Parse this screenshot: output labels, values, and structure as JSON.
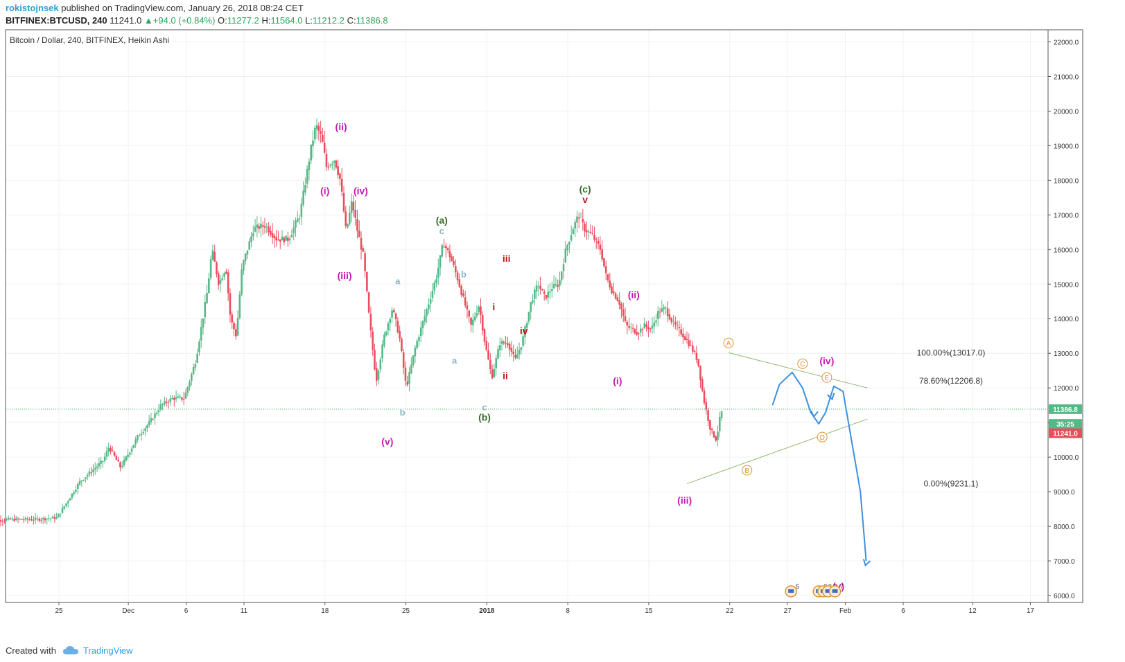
{
  "header": {
    "author": "rokistojnsek",
    "published": "published on TradingView.com, January 26, 2018 08:24 CET",
    "symbol": "BITFINEX:BTCUSD, 240",
    "last": "11241.0",
    "change": "+94.0 (+0.84%)",
    "o_label": "O:",
    "o_value": "11277.2",
    "h_label": "H:",
    "h_value": "11564.0",
    "l_label": "L:",
    "l_value": "11212.2",
    "c_label": "C:",
    "c_value": "11386.8"
  },
  "footer": {
    "created_with": "Created with",
    "brand": "TradingView"
  },
  "colors": {
    "up": "#53b987",
    "down": "#eb4d5c",
    "purple": "#c71ab0",
    "green_dark": "#3b6b2e",
    "red_dark": "#b71c1c",
    "lightblue": "#8fb4c4",
    "orange": "#e0922f",
    "fib_line": "#8db86b",
    "forecast": "#3d8fe0",
    "price_line": "#26a65b"
  },
  "chart_data": {
    "type": "candlestick",
    "title": "Bitcoin / Dollar, 240, BITFINEX, Heikin Ashi",
    "ylim": [
      5800,
      22350
    ],
    "y_ticks": [
      6000,
      7000,
      8000,
      9000,
      10000,
      11000,
      12000,
      13000,
      14000,
      15000,
      16000,
      17000,
      18000,
      19000,
      20000,
      21000,
      22000
    ],
    "y_tick_labels": [
      "6000.0",
      "7000.0",
      "8000.0",
      "9000.0",
      "10000.0",
      "11000.0",
      "12000.0",
      "13000.0",
      "14000.0",
      "15000.0",
      "16000.0",
      "17000.0",
      "18000.0",
      "19000.0",
      "20000.0",
      "21000.0",
      "22000.0"
    ],
    "x_days": [
      -11.2,
      52.4
    ],
    "x_ticks": [
      {
        "day": -5,
        "label": "25"
      },
      {
        "day": 1,
        "label": "Dec"
      },
      {
        "day": 6,
        "label": "6"
      },
      {
        "day": 11,
        "label": "11"
      },
      {
        "day": 18,
        "label": "18"
      },
      {
        "day": 25,
        "label": "25"
      },
      {
        "day": 32,
        "label": "2018"
      },
      {
        "day": 39,
        "label": "8"
      },
      {
        "day": 46,
        "label": "15"
      },
      {
        "day": 53,
        "label": "22"
      },
      {
        "day": 58,
        "label": "27"
      },
      {
        "day": 63,
        "label": "Feb"
      },
      {
        "day": 68,
        "label": "6"
      },
      {
        "day": 74,
        "label": "12"
      },
      {
        "day": 79,
        "label": "17"
      }
    ],
    "price_key": [
      [
        -11.2,
        8150
      ],
      [
        -9,
        8200
      ],
      [
        -7,
        8200
      ],
      [
        -5,
        8250
      ],
      [
        -3,
        9300
      ],
      [
        -1,
        9900
      ],
      [
        -0.5,
        10300
      ],
      [
        0.5,
        9700
      ],
      [
        2,
        10600
      ],
      [
        3,
        11000
      ],
      [
        4,
        11500
      ],
      [
        5,
        11700
      ],
      [
        6,
        11700
      ],
      [
        7,
        12800
      ],
      [
        8,
        14800
      ],
      [
        8.4,
        16000
      ],
      [
        9,
        15000
      ],
      [
        9.6,
        15500
      ],
      [
        10,
        14000
      ],
      [
        10.5,
        13500
      ],
      [
        11,
        15500
      ],
      [
        12,
        16600
      ],
      [
        13,
        16700
      ],
      [
        14,
        16300
      ],
      [
        15,
        16300
      ],
      [
        16,
        17000
      ],
      [
        16.5,
        18000
      ],
      [
        17,
        19000
      ],
      [
        17.4,
        19600
      ],
      [
        17.9,
        19200
      ],
      [
        18.3,
        18400
      ],
      [
        19,
        18600
      ],
      [
        19.5,
        18000
      ],
      [
        20,
        16500
      ],
      [
        20.5,
        17400
      ],
      [
        21,
        16500
      ],
      [
        21.5,
        15800
      ],
      [
        22,
        14000
      ],
      [
        22.6,
        12200
      ],
      [
        23.3,
        13500
      ],
      [
        24,
        14300
      ],
      [
        24.6,
        13500
      ],
      [
        25.2,
        12000
      ],
      [
        26,
        13200
      ],
      [
        27,
        14300
      ],
      [
        27.8,
        15200
      ],
      [
        28.4,
        16200
      ],
      [
        29,
        15800
      ],
      [
        29.6,
        15200
      ],
      [
        30.2,
        14500
      ],
      [
        30.8,
        13800
      ],
      [
        31.5,
        14400
      ],
      [
        32,
        13300
      ],
      [
        32.6,
        12300
      ],
      [
        33.3,
        13300
      ],
      [
        34,
        13300
      ],
      [
        34.6,
        12800
      ],
      [
        35.2,
        13300
      ],
      [
        36,
        14500
      ],
      [
        36.6,
        15000
      ],
      [
        37.2,
        14600
      ],
      [
        37.8,
        14900
      ],
      [
        38.4,
        15000
      ],
      [
        39,
        16000
      ],
      [
        39.6,
        16600
      ],
      [
        40.1,
        17000
      ],
      [
        40.6,
        16600
      ],
      [
        41.3,
        16400
      ],
      [
        42,
        16000
      ],
      [
        42.5,
        15200
      ],
      [
        43,
        14800
      ],
      [
        43.6,
        14500
      ],
      [
        44.2,
        13800
      ],
      [
        44.7,
        13700
      ],
      [
        45.2,
        13600
      ],
      [
        45.8,
        13800
      ],
      [
        46.4,
        13700
      ],
      [
        47,
        14200
      ],
      [
        47.6,
        14300
      ],
      [
        48.2,
        13900
      ],
      [
        48.7,
        13700
      ],
      [
        49.2,
        13500
      ],
      [
        49.8,
        13200
      ],
      [
        50.4,
        12800
      ],
      [
        50.9,
        11700
      ],
      [
        51.5,
        10800
      ],
      [
        52,
        10500
      ],
      [
        52.4,
        11300
      ]
    ],
    "levels": [
      {
        "label": "100.00%(13017.0)",
        "value": 13017.0
      },
      {
        "label": "78.60%(12206.8)",
        "value": 12206.8
      },
      {
        "label": "0.00%(9231.1)",
        "value": 9231.1
      }
    ],
    "price_tags": [
      {
        "label": "11386.8",
        "value": 11386.8,
        "color": "#53b987"
      },
      {
        "label": "35:25",
        "value": 10960,
        "color": "#53b987"
      },
      {
        "label": "11241.0",
        "value": 10690,
        "color": "#eb4d5c"
      }
    ],
    "wave_labels": [
      {
        "text": "(ii)",
        "color": "purple",
        "d": 19.4,
        "v": 19550
      },
      {
        "text": "(i)",
        "color": "purple",
        "d": 18.0,
        "v": 17700
      },
      {
        "text": "(iv)",
        "color": "purple",
        "d": 21.1,
        "v": 17700
      },
      {
        "text": "(iii)",
        "color": "purple",
        "d": 19.7,
        "v": 15250
      },
      {
        "text": "(v)",
        "color": "purple",
        "d": 23.4,
        "v": 10450
      },
      {
        "text": "a",
        "color": "lightblue",
        "d": 24.3,
        "v": 15100
      },
      {
        "text": "b",
        "color": "lightblue",
        "d": 24.7,
        "v": 11300
      },
      {
        "text": "(a)",
        "color": "green_dark",
        "d": 28.1,
        "v": 16850
      },
      {
        "text": "c",
        "color": "lightblue",
        "d": 28.1,
        "v": 16550
      },
      {
        "text": "b",
        "color": "lightblue",
        "d": 30.0,
        "v": 15300
      },
      {
        "text": "a",
        "color": "lightblue",
        "d": 29.2,
        "v": 12800
      },
      {
        "text": "c",
        "color": "lightblue",
        "d": 31.8,
        "v": 11450
      },
      {
        "text": "(b)",
        "color": "green_dark",
        "d": 31.8,
        "v": 11150
      },
      {
        "text": "iii",
        "color": "red_dark",
        "d": 33.7,
        "v": 15750
      },
      {
        "text": "i",
        "color": "red_dark",
        "d": 32.6,
        "v": 14350
      },
      {
        "text": "iv",
        "color": "red_dark",
        "d": 35.2,
        "v": 13650
      },
      {
        "text": "ii",
        "color": "red_dark",
        "d": 33.6,
        "v": 12350
      },
      {
        "text": "(c)",
        "color": "green_dark",
        "d": 40.5,
        "v": 17750
      },
      {
        "text": "v",
        "color": "red_dark",
        "d": 40.5,
        "v": 17450
      },
      {
        "text": "(ii)",
        "color": "purple",
        "d": 44.7,
        "v": 14700
      },
      {
        "text": "(i)",
        "color": "purple",
        "d": 43.3,
        "v": 12200
      },
      {
        "text": "(iii)",
        "color": "purple",
        "d": 49.1,
        "v": 8750
      }
    ],
    "circle_labels": [
      {
        "text": "A",
        "d": 52.9,
        "v": 13300
      },
      {
        "text": "C",
        "d": 59.3,
        "v": 12700
      },
      {
        "text": "E",
        "d": 61.4,
        "v": 12300
      },
      {
        "text": "D",
        "d": 61.0,
        "v": 10580
      },
      {
        "text": "B",
        "d": 54.5,
        "v": 9620
      }
    ],
    "projection_label": {
      "text": "(iv)",
      "d": 61.4,
      "v": 12780
    },
    "projection_label2": {
      "text": "(v)",
      "d": 62.4,
      "v": 6270
    },
    "event_markers": [
      {
        "text": "5",
        "d": 58.3
      },
      {
        "text": "2",
        "d": 60.7
      },
      {
        "text": "3",
        "d": 61.1
      },
      {
        "text": "4",
        "d": 61.5
      },
      {
        "text": "7",
        "d": 62.1
      }
    ]
  }
}
